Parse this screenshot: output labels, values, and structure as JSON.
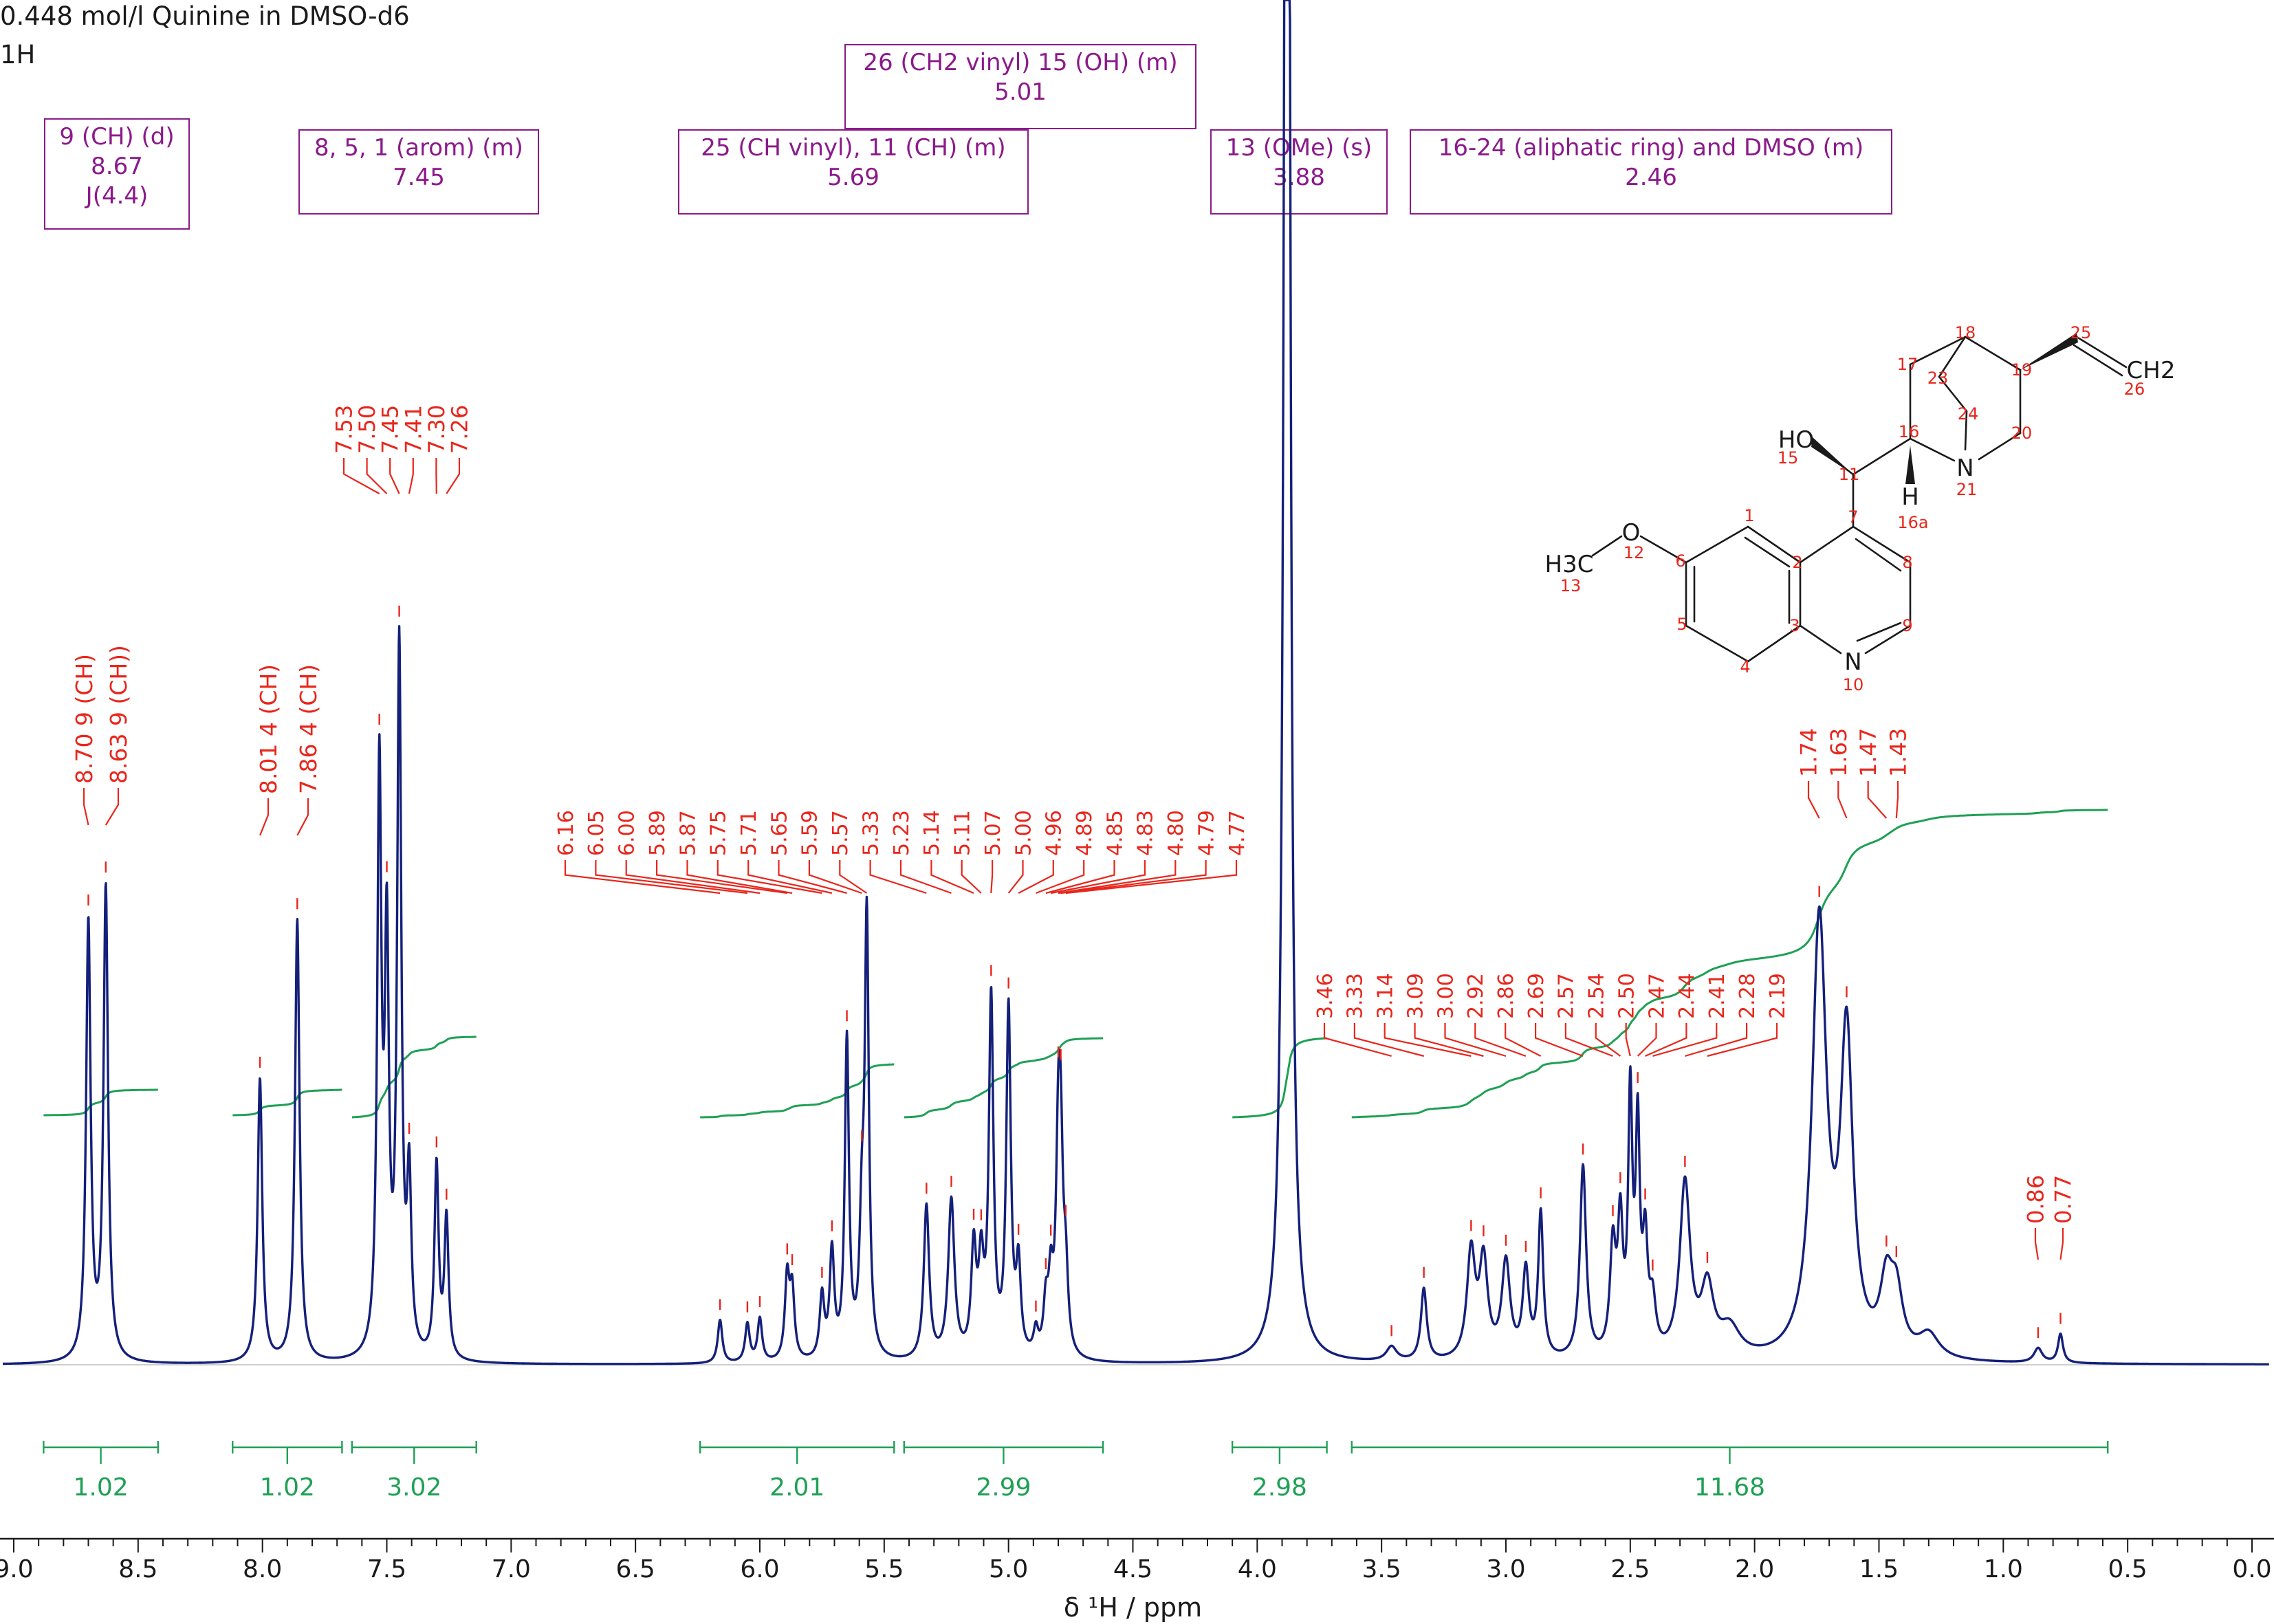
{
  "header": {
    "line1": "0.448 mol/l Quinine in DMSO-d6",
    "line2": "1H"
  },
  "annotations": [
    {
      "lines": [
        "9 (CH) (d)",
        "8.67",
        "J(4.4)"
      ]
    },
    {
      "lines": [
        "8, 5, 1 (arom) (m)",
        "7.45"
      ]
    },
    {
      "lines": [
        "25 (CH vinyl), 11 (CH)  (m)",
        "5.69"
      ]
    },
    {
      "lines": [
        "26 (CH2 vinyl) 15 (OH) (m)",
        "5.01"
      ]
    },
    {
      "lines": [
        "13 (OMe) (s)",
        "3.88"
      ]
    },
    {
      "lines": [
        "16-24 (aliphatic ring) and DMSO (m)",
        "2.46"
      ]
    }
  ],
  "colors": {
    "spectrum": "#14207a",
    "peak_labels": "#e8261c",
    "integral": "#1fa055",
    "annotation": "#8b1a8b",
    "axis": "#1a1a1a"
  },
  "chart_data": {
    "type": "line",
    "title": "0.448 mol/l Quinine in DMSO-d6",
    "nucleus": "1H",
    "xlabel": "δ ¹H / ppm",
    "xlim": [
      9.0,
      0.0
    ],
    "x_reversed": true,
    "xticks": [
      "9.0",
      "8.5",
      "8.0",
      "7.5",
      "7.0",
      "6.5",
      "6.0",
      "5.5",
      "5.0",
      "4.5",
      "4.0",
      "3.5",
      "3.0",
      "2.5",
      "2.0",
      "1.5",
      "1.0",
      "0.5",
      "0.0"
    ],
    "grid": false,
    "peaks": [
      {
        "ppm": 8.7,
        "height": 0.91,
        "width": 0.011
      },
      {
        "ppm": 8.63,
        "height": 0.98,
        "width": 0.011
      },
      {
        "ppm": 8.01,
        "height": 0.59,
        "width": 0.011
      },
      {
        "ppm": 7.86,
        "height": 0.92,
        "width": 0.011
      },
      {
        "ppm": 7.53,
        "height": 1.2,
        "width": 0.01
      },
      {
        "ppm": 7.5,
        "height": 0.82,
        "width": 0.01
      },
      {
        "ppm": 7.45,
        "height": 1.46,
        "width": 0.01
      },
      {
        "ppm": 7.41,
        "height": 0.35,
        "width": 0.01
      },
      {
        "ppm": 7.3,
        "height": 0.4,
        "width": 0.01
      },
      {
        "ppm": 7.26,
        "height": 0.29,
        "width": 0.01
      },
      {
        "ppm": 6.16,
        "height": 0.09,
        "width": 0.011
      },
      {
        "ppm": 6.05,
        "height": 0.08,
        "width": 0.011
      },
      {
        "ppm": 6.0,
        "height": 0.09,
        "width": 0.011
      },
      {
        "ppm": 5.89,
        "height": 0.17,
        "width": 0.011
      },
      {
        "ppm": 5.87,
        "height": 0.14,
        "width": 0.011
      },
      {
        "ppm": 5.75,
        "height": 0.13,
        "width": 0.011
      },
      {
        "ppm": 5.71,
        "height": 0.22,
        "width": 0.011
      },
      {
        "ppm": 5.65,
        "height": 0.66,
        "width": 0.01
      },
      {
        "ppm": 5.59,
        "height": 0.24,
        "width": 0.011
      },
      {
        "ppm": 5.57,
        "height": 0.9,
        "width": 0.01
      },
      {
        "ppm": 5.33,
        "height": 0.32,
        "width": 0.013
      },
      {
        "ppm": 5.23,
        "height": 0.33,
        "width": 0.015
      },
      {
        "ppm": 5.14,
        "height": 0.22,
        "width": 0.012
      },
      {
        "ppm": 5.11,
        "height": 0.18,
        "width": 0.012
      },
      {
        "ppm": 5.07,
        "height": 0.74,
        "width": 0.011
      },
      {
        "ppm": 5.0,
        "height": 0.72,
        "width": 0.011
      },
      {
        "ppm": 4.96,
        "height": 0.18,
        "width": 0.011
      },
      {
        "ppm": 4.89,
        "height": 0.05,
        "width": 0.011
      },
      {
        "ppm": 4.85,
        "height": 0.1,
        "width": 0.011
      },
      {
        "ppm": 4.83,
        "height": 0.14,
        "width": 0.011
      },
      {
        "ppm": 4.8,
        "height": 0.38,
        "width": 0.011
      },
      {
        "ppm": 4.79,
        "height": 0.35,
        "width": 0.011
      },
      {
        "ppm": 4.77,
        "height": 0.15,
        "width": 0.011
      },
      {
        "ppm": 3.88,
        "height": 6.0,
        "width": 0.011
      },
      {
        "ppm": 3.46,
        "height": 0.03,
        "width": 0.025
      },
      {
        "ppm": 3.33,
        "height": 0.15,
        "width": 0.014
      },
      {
        "ppm": 3.14,
        "height": 0.22,
        "width": 0.02
      },
      {
        "ppm": 3.09,
        "height": 0.2,
        "width": 0.02
      },
      {
        "ppm": 3.0,
        "height": 0.2,
        "width": 0.02
      },
      {
        "ppm": 2.92,
        "height": 0.18,
        "width": 0.015
      },
      {
        "ppm": 2.86,
        "height": 0.3,
        "width": 0.012
      },
      {
        "ppm": 2.69,
        "height": 0.4,
        "width": 0.015
      },
      {
        "ppm": 2.57,
        "height": 0.22,
        "width": 0.014
      },
      {
        "ppm": 2.54,
        "height": 0.26,
        "width": 0.012
      },
      {
        "ppm": 2.5,
        "height": 0.52,
        "width": 0.01
      },
      {
        "ppm": 2.47,
        "height": 0.45,
        "width": 0.01
      },
      {
        "ppm": 2.44,
        "height": 0.22,
        "width": 0.012
      },
      {
        "ppm": 2.41,
        "height": 0.1,
        "width": 0.015
      },
      {
        "ppm": 2.28,
        "height": 0.36,
        "width": 0.025
      },
      {
        "ppm": 2.19,
        "height": 0.14,
        "width": 0.03
      },
      {
        "ppm": 2.1,
        "height": 0.06,
        "width": 0.05
      },
      {
        "ppm": 1.74,
        "height": 0.9,
        "width": 0.035
      },
      {
        "ppm": 1.63,
        "height": 0.65,
        "width": 0.03
      },
      {
        "ppm": 1.47,
        "height": 0.14,
        "width": 0.03
      },
      {
        "ppm": 1.43,
        "height": 0.12,
        "width": 0.03
      },
      {
        "ppm": 1.3,
        "height": 0.05,
        "width": 0.05
      },
      {
        "ppm": 0.86,
        "height": 0.03,
        "width": 0.02
      },
      {
        "ppm": 0.77,
        "height": 0.06,
        "width": 0.012
      }
    ],
    "peak_label_groups": [
      {
        "labels": [
          "8.70 9 (CH)",
          "8.63 9 (CH))"
        ],
        "ppm": [
          8.7,
          8.63
        ]
      },
      {
        "labels": [
          "8.01 4 (CH)",
          "7.86 4 (CH)"
        ],
        "ppm": [
          8.01,
          7.86
        ]
      },
      {
        "labels": [
          "7.53",
          "7.50",
          "7.45",
          "7.41",
          "7.30",
          "7.26"
        ],
        "ppm": [
          7.53,
          7.5,
          7.45,
          7.41,
          7.3,
          7.26
        ]
      },
      {
        "labels": [
          "6.16",
          "6.05",
          "6.00",
          "5.89",
          "5.87",
          "5.75",
          "5.71",
          "5.65",
          "5.59",
          "5.57",
          "5.33",
          "5.23",
          "5.14",
          "5.11",
          "5.07",
          "5.00",
          "4.96",
          "4.89",
          "4.85",
          "4.83",
          "4.80",
          "4.79",
          "4.77"
        ],
        "ppm": [
          6.16,
          6.05,
          6.0,
          5.89,
          5.87,
          5.75,
          5.71,
          5.65,
          5.59,
          5.57,
          5.33,
          5.23,
          5.14,
          5.11,
          5.07,
          5.0,
          4.96,
          4.89,
          4.85,
          4.83,
          4.8,
          4.79,
          4.77
        ]
      },
      {
        "labels": [
          "3.46",
          "3.33",
          "3.14",
          "3.09",
          "3.00",
          "2.92",
          "2.86",
          "2.69",
          "2.57",
          "2.54",
          "2.50",
          "2.47",
          "2.44",
          "2.41",
          "2.28",
          "2.19"
        ],
        "ppm": [
          3.46,
          3.33,
          3.14,
          3.09,
          3.0,
          2.92,
          2.86,
          2.69,
          2.57,
          2.54,
          2.5,
          2.47,
          2.44,
          2.41,
          2.28,
          2.19
        ]
      },
      {
        "labels": [
          "1.74",
          "1.63",
          "1.47",
          "1.43"
        ],
        "ppm": [
          1.74,
          1.63,
          1.47,
          1.43
        ]
      },
      {
        "labels": [
          "0.86",
          "0.77"
        ],
        "ppm": [
          0.86,
          0.77
        ]
      }
    ],
    "integrals": [
      {
        "from": 8.88,
        "to": 8.42,
        "value": "1.02"
      },
      {
        "from": 8.12,
        "to": 7.68,
        "value": "1.02"
      },
      {
        "from": 7.64,
        "to": 7.14,
        "value": "3.02"
      },
      {
        "from": 6.24,
        "to": 5.46,
        "value": "2.01"
      },
      {
        "from": 5.42,
        "to": 4.62,
        "value": "2.99"
      },
      {
        "from": 4.1,
        "to": 3.72,
        "value": "2.98"
      },
      {
        "from": 3.62,
        "to": 0.58,
        "value": "11.68"
      }
    ],
    "structure": {
      "name": "Quinine",
      "atom_labels": [
        "1",
        "2",
        "3",
        "4",
        "5",
        "6",
        "7",
        "8",
        "9",
        "10",
        "11",
        "12",
        "13",
        "15",
        "16",
        "16a",
        "17",
        "18",
        "19",
        "20",
        "21",
        "23",
        "24",
        "25",
        "26"
      ],
      "groups": [
        "HO",
        "H",
        "N",
        "N",
        "O",
        "H3C",
        "CH2"
      ]
    }
  }
}
